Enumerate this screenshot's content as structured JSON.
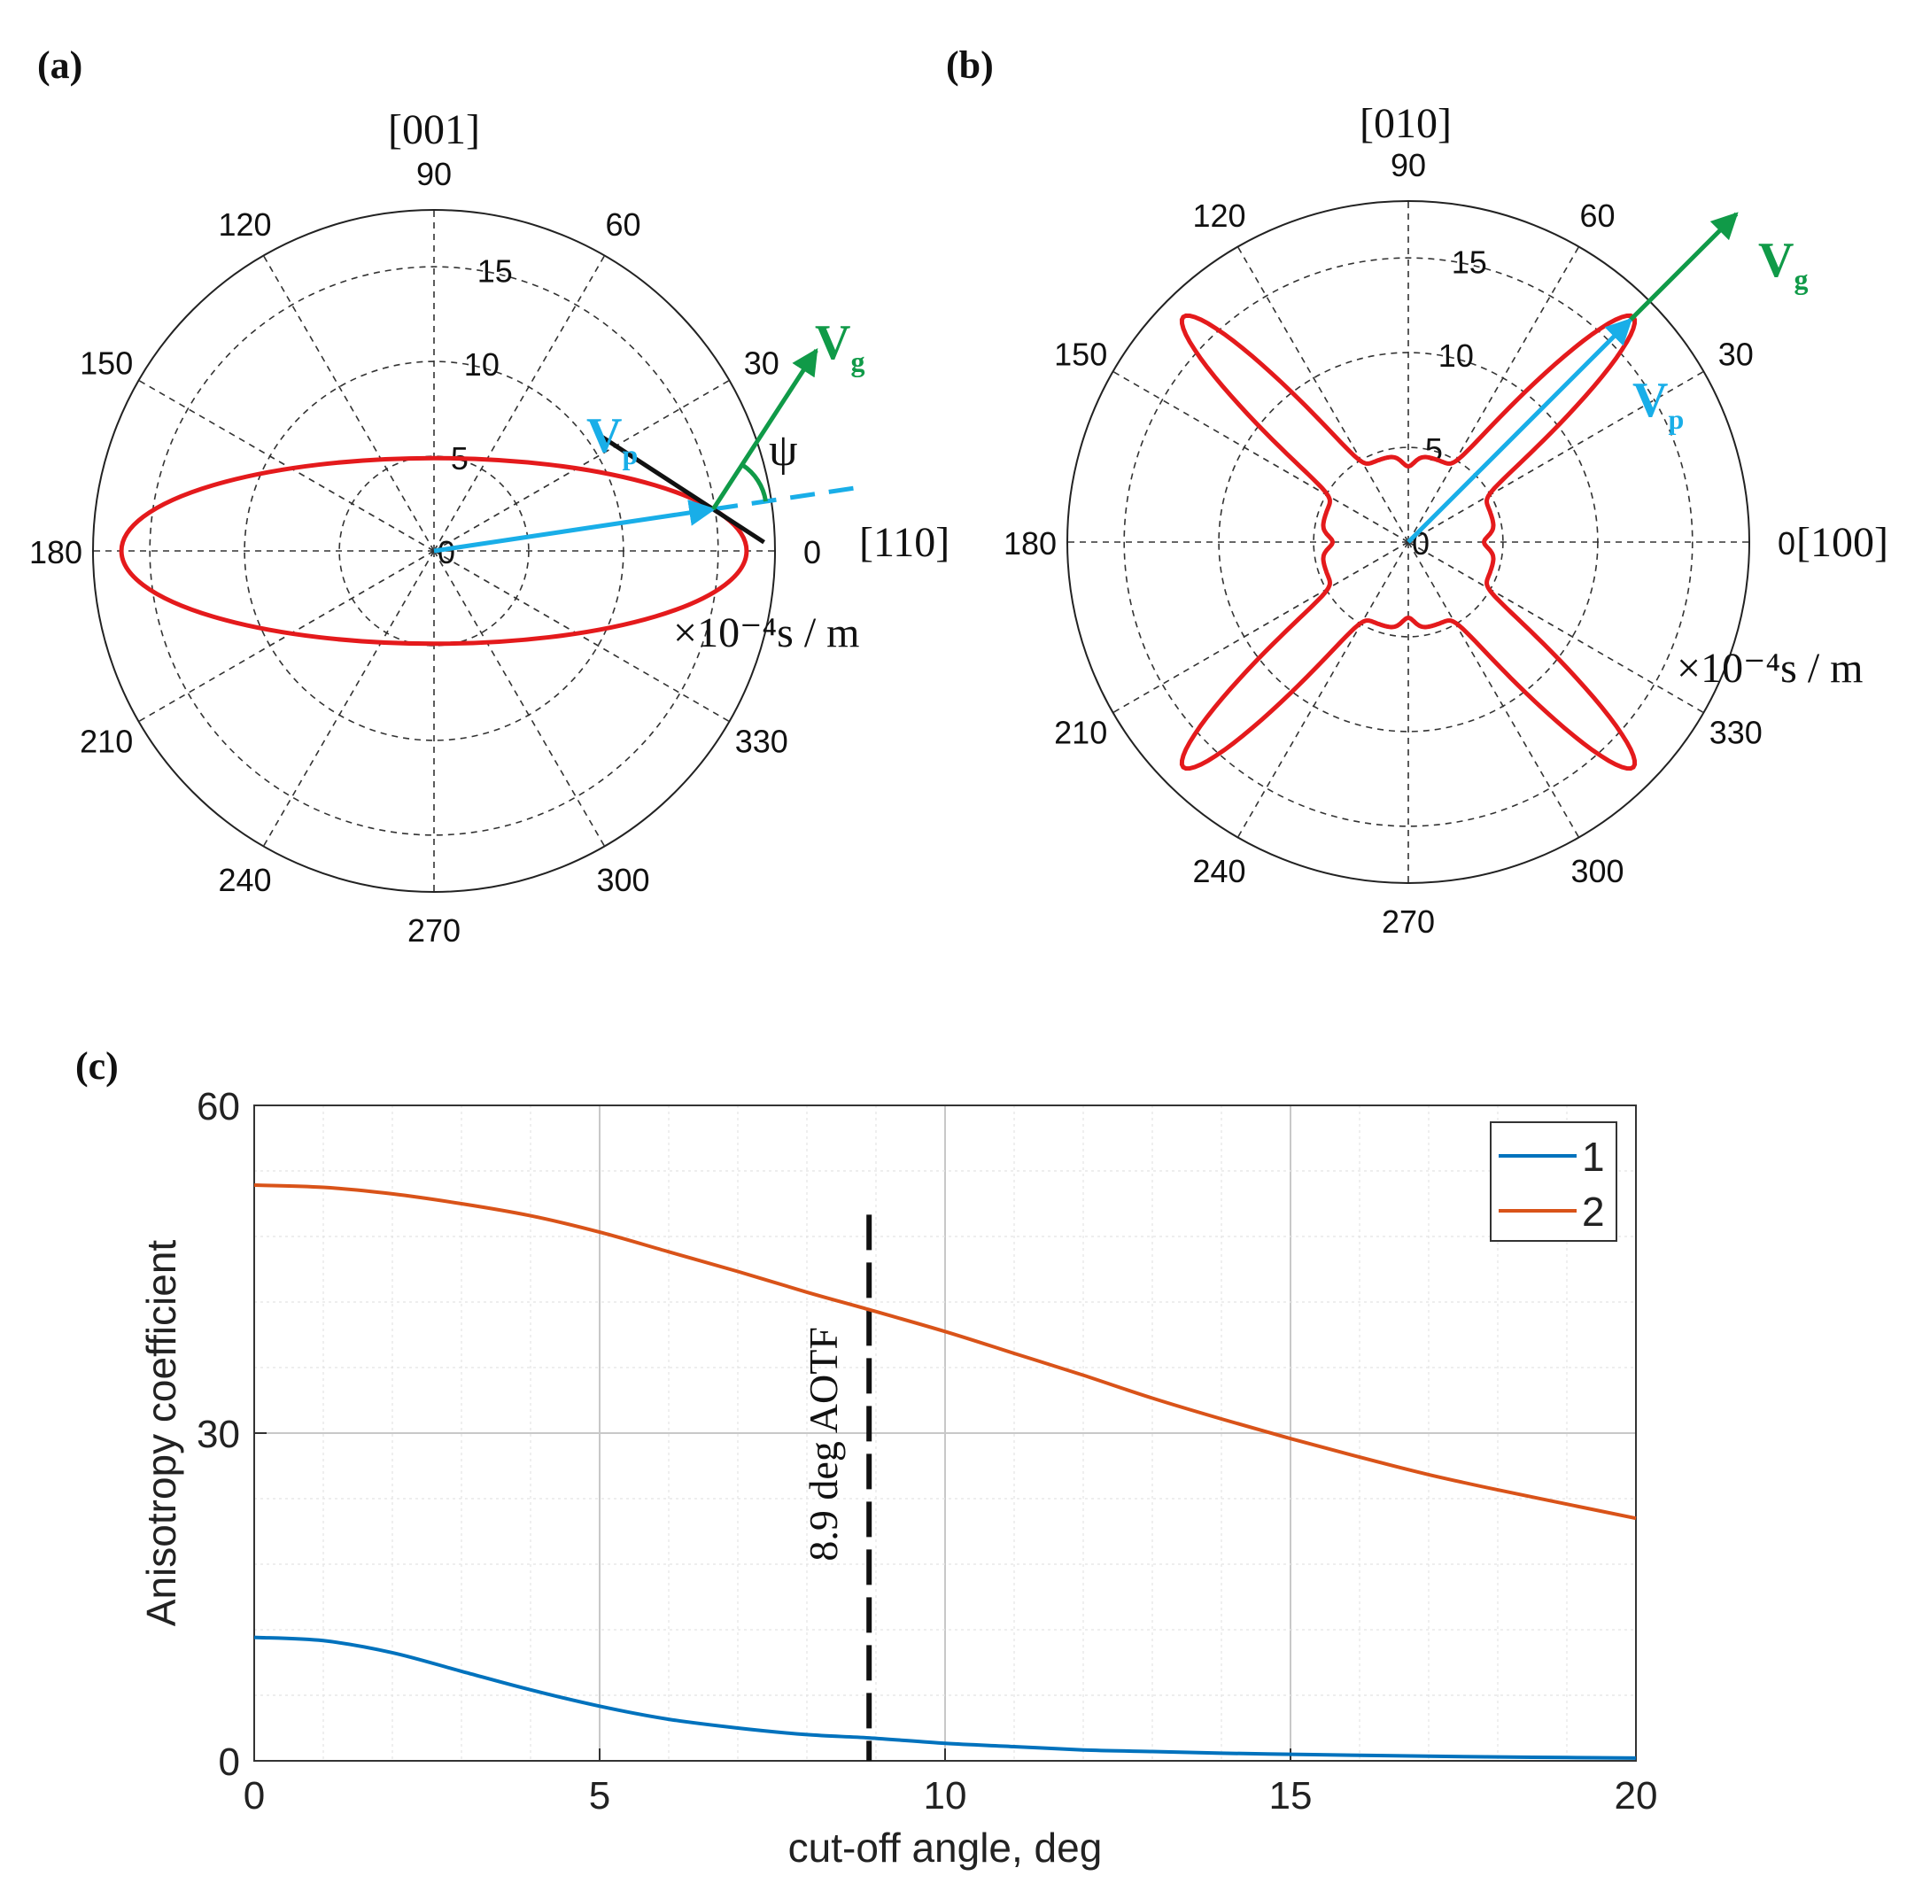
{
  "figure": {
    "colors": {
      "curve_red": "#e41a1c",
      "vp_blue": "#19aee8",
      "vg_green": "#109a48",
      "series1": "#0072bd",
      "series2": "#d95319",
      "grid_dark": "#444444",
      "grid_light": "#d8d8d8",
      "text": "#111111"
    }
  },
  "chart_data": [
    {
      "type": "polar",
      "panel_label": "(a)",
      "top_direction_label": "[001]",
      "right_direction_label": "[110]",
      "units_label": "×10⁻⁴s / m",
      "r_ticks": [
        0,
        5,
        10,
        15
      ],
      "r_tick_labels": [
        "0",
        "5",
        "10",
        "15"
      ],
      "rlim": [
        0,
        18
      ],
      "theta_ticks": [
        0,
        30,
        60,
        90,
        120,
        150,
        180,
        210,
        240,
        270,
        300,
        330
      ],
      "theta_tick_labels": [
        "0",
        "30",
        "60",
        "90",
        "120",
        "150",
        "180",
        "210",
        "240",
        "270",
        "300",
        "330"
      ],
      "curve": {
        "shape": "ellipse",
        "a_horizontal": 16.5,
        "b_vertical": 4.9,
        "color": "#e41a1c"
      },
      "vectors": [
        {
          "name": "Vp",
          "label_main": "V",
          "label_sub": "p",
          "angle_deg": 8.5,
          "r": 14.5,
          "color": "#19aee8"
        },
        {
          "name": "Vg",
          "label_main": "V",
          "label_sub": "g",
          "angle_deg": 57,
          "r": 10.0,
          "color": "#109a48"
        }
      ],
      "reference_line_angle_deg": 8.5,
      "angle_label": "ψ"
    },
    {
      "type": "polar",
      "panel_label": "(b)",
      "top_direction_label": "[010]",
      "right_direction_label": "[100]",
      "units_label": "×10⁻⁴s / m",
      "r_ticks": [
        0,
        5,
        10,
        15
      ],
      "r_tick_labels": [
        "0",
        "5",
        "10",
        "15"
      ],
      "rlim": [
        0,
        18
      ],
      "theta_ticks": [
        0,
        30,
        60,
        90,
        120,
        150,
        180,
        210,
        240,
        270,
        300,
        330
      ],
      "theta_tick_labels": [
        "0",
        "30",
        "60",
        "90",
        "120",
        "150",
        "180",
        "210",
        "240",
        "270",
        "300",
        "330"
      ],
      "curve": {
        "shape": "four-lobe",
        "lobe_angles_deg": [
          45,
          135,
          225,
          315
        ],
        "lobe_r": 16.8,
        "base_r": 4.6,
        "color": "#e41a1c"
      },
      "vectors": [
        {
          "name": "Vp",
          "label_main": "V",
          "label_sub": "p",
          "angle_deg": 45,
          "r": 16.6,
          "color": "#19aee8"
        },
        {
          "name": "Vg",
          "label_main": "V",
          "label_sub": "g",
          "angle_deg": 45,
          "r": 24.5,
          "color": "#109a48"
        }
      ]
    },
    {
      "type": "line",
      "panel_label": "(c)",
      "xlabel": "cut-off angle, deg",
      "ylabel": "Anisotropy coefficient",
      "xlim": [
        0,
        20
      ],
      "ylim": [
        0,
        60
      ],
      "x_ticks": [
        0,
        5,
        10,
        15,
        20
      ],
      "y_ticks": [
        0,
        30,
        60
      ],
      "grid": true,
      "minor_grid": true,
      "legend_position": "top-right",
      "annotation": {
        "text": "8.9 deg AOTF",
        "x": 8.9,
        "y_top": 50
      },
      "x": [
        0,
        1,
        2,
        3,
        4,
        5,
        6,
        7,
        8,
        8.9,
        10,
        11,
        12,
        13,
        14,
        15,
        16,
        17,
        18,
        19,
        20
      ],
      "series": [
        {
          "name": "1",
          "color": "#0072bd",
          "values": [
            11.3,
            11.0,
            9.9,
            8.2,
            6.5,
            5.0,
            3.8,
            3.0,
            2.4,
            2.1,
            1.6,
            1.3,
            1.0,
            0.85,
            0.7,
            0.6,
            0.5,
            0.42,
            0.36,
            0.3,
            0.25
          ]
        },
        {
          "name": "2",
          "color": "#d95319",
          "values": [
            52.7,
            52.5,
            51.9,
            51.0,
            49.9,
            48.4,
            46.6,
            44.8,
            42.9,
            41.3,
            39.3,
            37.3,
            35.3,
            33.2,
            31.3,
            29.5,
            27.8,
            26.2,
            24.8,
            23.5,
            22.2
          ]
        }
      ]
    }
  ]
}
